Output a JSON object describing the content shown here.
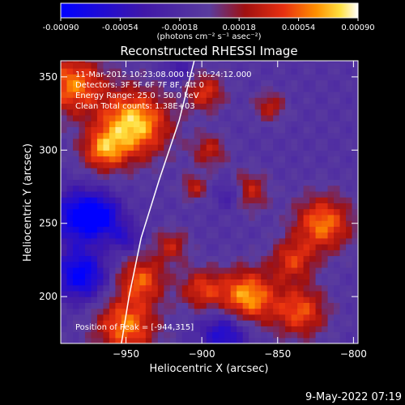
{
  "chart_data": {
    "type": "heatmap",
    "title": "Reconstructed RHESSI Image",
    "xlabel": "Heliocentric X (arcsec)",
    "ylabel": "Heliocentric Y (arcsec)",
    "xlim": [
      -993,
      -797
    ],
    "ylim": [
      168,
      361
    ],
    "x_ticks": [
      -950,
      -900,
      -850,
      -800
    ],
    "y_ticks": [
      200,
      250,
      300,
      350
    ],
    "colorbar": {
      "min": -0.0009,
      "max": 0.0009,
      "ticks": [
        "-0.00090",
        "-0.00054",
        "-0.00018",
        "0.00018",
        "0.00054",
        "0.00090"
      ],
      "unit_label": "(photons cm⁻² s⁻¹ asec⁻²)"
    },
    "annotations": {
      "time": "11-Mar-2012 10:23:08.000 to 10:24:12.000",
      "detectors": "Detectors: 3F 5F 6F 7F 8F, Att 0",
      "energy": "Energy Range: 25.0 - 50.0 keV",
      "method": "Clean    Total counts: 1.38E+03",
      "peak": "Position of Peak = [-944,315]"
    },
    "peak": [
      -944,
      315
    ],
    "limb_curve": [
      [
        -953,
        168
      ],
      [
        -948,
        200
      ],
      [
        -940,
        240
      ],
      [
        -928,
        280
      ],
      [
        -915,
        320
      ],
      [
        -905,
        361
      ]
    ],
    "hotspots": [
      {
        "x": -945,
        "y": 318,
        "r": 16,
        "v": 0.0009
      },
      {
        "x": -965,
        "y": 300,
        "r": 10,
        "v": 0.0006
      },
      {
        "x": -985,
        "y": 345,
        "r": 14,
        "v": 0.0007
      },
      {
        "x": -898,
        "y": 340,
        "r": 9,
        "v": 0.0005
      },
      {
        "x": -895,
        "y": 300,
        "r": 8,
        "v": 0.0004
      },
      {
        "x": -870,
        "y": 272,
        "r": 9,
        "v": 0.0005
      },
      {
        "x": -820,
        "y": 250,
        "r": 13,
        "v": 0.0007
      },
      {
        "x": -840,
        "y": 225,
        "r": 10,
        "v": 0.0005
      },
      {
        "x": -835,
        "y": 190,
        "r": 12,
        "v": 0.0006
      },
      {
        "x": -870,
        "y": 200,
        "r": 13,
        "v": 0.0008
      },
      {
        "x": -900,
        "y": 205,
        "r": 10,
        "v": 0.0005
      },
      {
        "x": -940,
        "y": 212,
        "r": 11,
        "v": 0.0006
      },
      {
        "x": -920,
        "y": 235,
        "r": 8,
        "v": 0.0004
      },
      {
        "x": -950,
        "y": 180,
        "r": 14,
        "v": 0.0007
      },
      {
        "x": -905,
        "y": 275,
        "r": 6,
        "v": 0.0004
      },
      {
        "x": -855,
        "y": 330,
        "r": 7,
        "v": 0.0004
      }
    ],
    "coldspots": [
      {
        "x": -980,
        "y": 255,
        "r": 13,
        "v": -0.0008
      },
      {
        "x": -980,
        "y": 215,
        "r": 12,
        "v": -0.0008
      },
      {
        "x": -965,
        "y": 255,
        "r": 9,
        "v": -0.0005
      },
      {
        "x": -885,
        "y": 175,
        "r": 11,
        "v": -0.0006
      },
      {
        "x": -880,
        "y": 270,
        "r": 7,
        "v": -0.0004
      },
      {
        "x": -950,
        "y": 240,
        "r": 7,
        "v": -0.0004
      },
      {
        "x": -915,
        "y": 355,
        "r": 7,
        "v": -0.0003
      }
    ]
  },
  "footer": {
    "timestamp": "9-May-2022 07:19"
  }
}
